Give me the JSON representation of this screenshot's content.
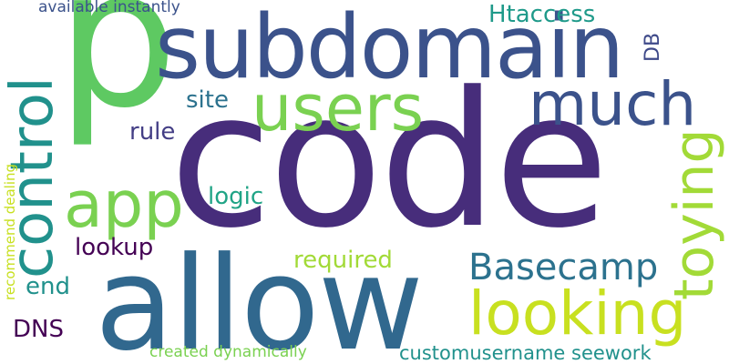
{
  "words": [
    {
      "id": "p",
      "text": "p",
      "color": "#5ec962",
      "rotated": false
    },
    {
      "id": "subdomain",
      "text": "subdomain",
      "color": "#3b528b",
      "rotated": false
    },
    {
      "id": "code",
      "text": "code",
      "color": "#472d7b",
      "rotated": false
    },
    {
      "id": "allow",
      "text": "allow",
      "color": "#31688e",
      "rotated": false
    },
    {
      "id": "users",
      "text": "users",
      "color": "#7ad151",
      "rotated": false
    },
    {
      "id": "much",
      "text": "much",
      "color": "#3b528b",
      "rotated": false
    },
    {
      "id": "toying",
      "text": "toying",
      "color": "#a2da37",
      "rotated": true
    },
    {
      "id": "control",
      "text": "control",
      "color": "#21918c",
      "rotated": true
    },
    {
      "id": "app",
      "text": "app",
      "color": "#7ad151",
      "rotated": false
    },
    {
      "id": "looking",
      "text": "looking",
      "color": "#c8e020",
      "rotated": false
    },
    {
      "id": "basecamp",
      "text": "Basecamp",
      "color": "#2c728e",
      "rotated": false
    },
    {
      "id": "htaccess",
      "text": "Htaccess",
      "color": "#1f9a8a",
      "rotated": false
    },
    {
      "id": "db",
      "text": "DB",
      "color": "#3e4989",
      "rotated": true
    },
    {
      "id": "site",
      "text": "site",
      "color": "#2c728e",
      "rotated": false
    },
    {
      "id": "rule",
      "text": "rule",
      "color": "#433e85",
      "rotated": false
    },
    {
      "id": "logic",
      "text": "logic",
      "color": "#20a486",
      "rotated": false
    },
    {
      "id": "lookup",
      "text": "lookup",
      "color": "#440154",
      "rotated": false
    },
    {
      "id": "required",
      "text": "required",
      "color": "#a2da37",
      "rotated": false
    },
    {
      "id": "end",
      "text": "end",
      "color": "#21918c",
      "rotated": false
    },
    {
      "id": "dns",
      "text": "DNS",
      "color": "#440154",
      "rotated": false
    },
    {
      "id": "customusername-seework",
      "text": "customusername seework",
      "color": "#21918c",
      "rotated": false
    },
    {
      "id": "created-dynamically",
      "text": "created dynamically",
      "color": "#7ad151",
      "rotated": false
    },
    {
      "id": "available-instantly",
      "text": "available instantly",
      "color": "#3b528b",
      "rotated": false
    },
    {
      "id": "recommend-dealing",
      "text": "recommend dealing",
      "color": "#c8e020",
      "rotated": true
    }
  ]
}
